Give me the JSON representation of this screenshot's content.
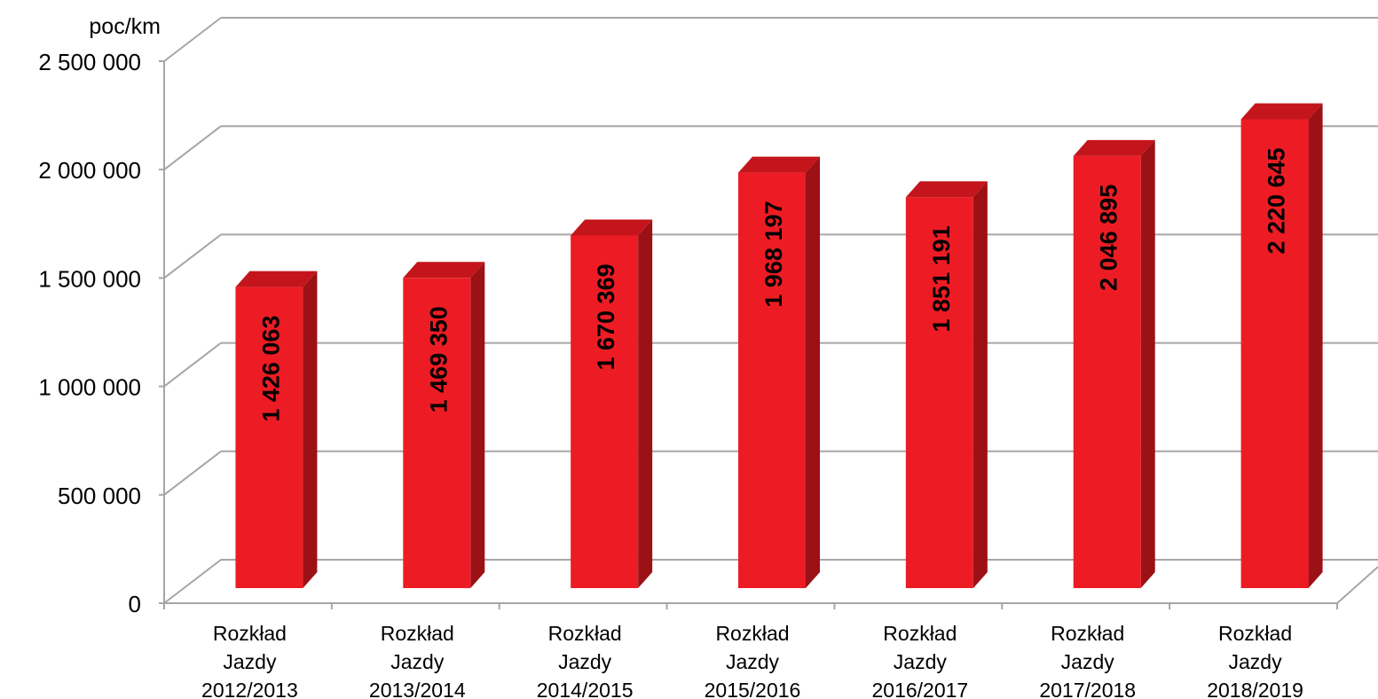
{
  "chart_data": {
    "type": "bar",
    "unit_label": "poc/km",
    "categories": [
      [
        "Rozkład",
        "Jazdy",
        "2012/2013"
      ],
      [
        "Rozkład",
        "Jazdy",
        "2013/2014"
      ],
      [
        "Rozkład",
        "Jazdy",
        "2014/2015"
      ],
      [
        "Rozkład",
        "Jazdy",
        "2015/2016"
      ],
      [
        "Rozkład",
        "Jazdy",
        "2016/2017"
      ],
      [
        "Rozkład",
        "Jazdy",
        "2017/2018"
      ],
      [
        "Rozkład",
        "Jazdy",
        "2018/2019"
      ]
    ],
    "values": [
      1426063,
      1469350,
      1670369,
      1968197,
      1851191,
      2046895,
      2220645
    ],
    "value_labels": [
      "1 426 063",
      "1 469 350",
      "1 670 369",
      "1 968 197",
      "1 851 191",
      "2 046 895",
      "2 220 645"
    ],
    "y_ticks": [
      {
        "value": 0,
        "label": "0"
      },
      {
        "value": 500000,
        "label": "500 000"
      },
      {
        "value": 1000000,
        "label": "1 000 000"
      },
      {
        "value": 1500000,
        "label": "1 500 000"
      },
      {
        "value": 2000000,
        "label": "2 000 000"
      },
      {
        "value": 2500000,
        "label": "2 500 000"
      }
    ],
    "ylim": [
      0,
      2500000
    ],
    "grid": true,
    "style": "3d-column",
    "colors": {
      "front": "#ed1c24",
      "side": "#9b1116",
      "top": "#c3151b",
      "grid": "#a6a6a6"
    }
  }
}
